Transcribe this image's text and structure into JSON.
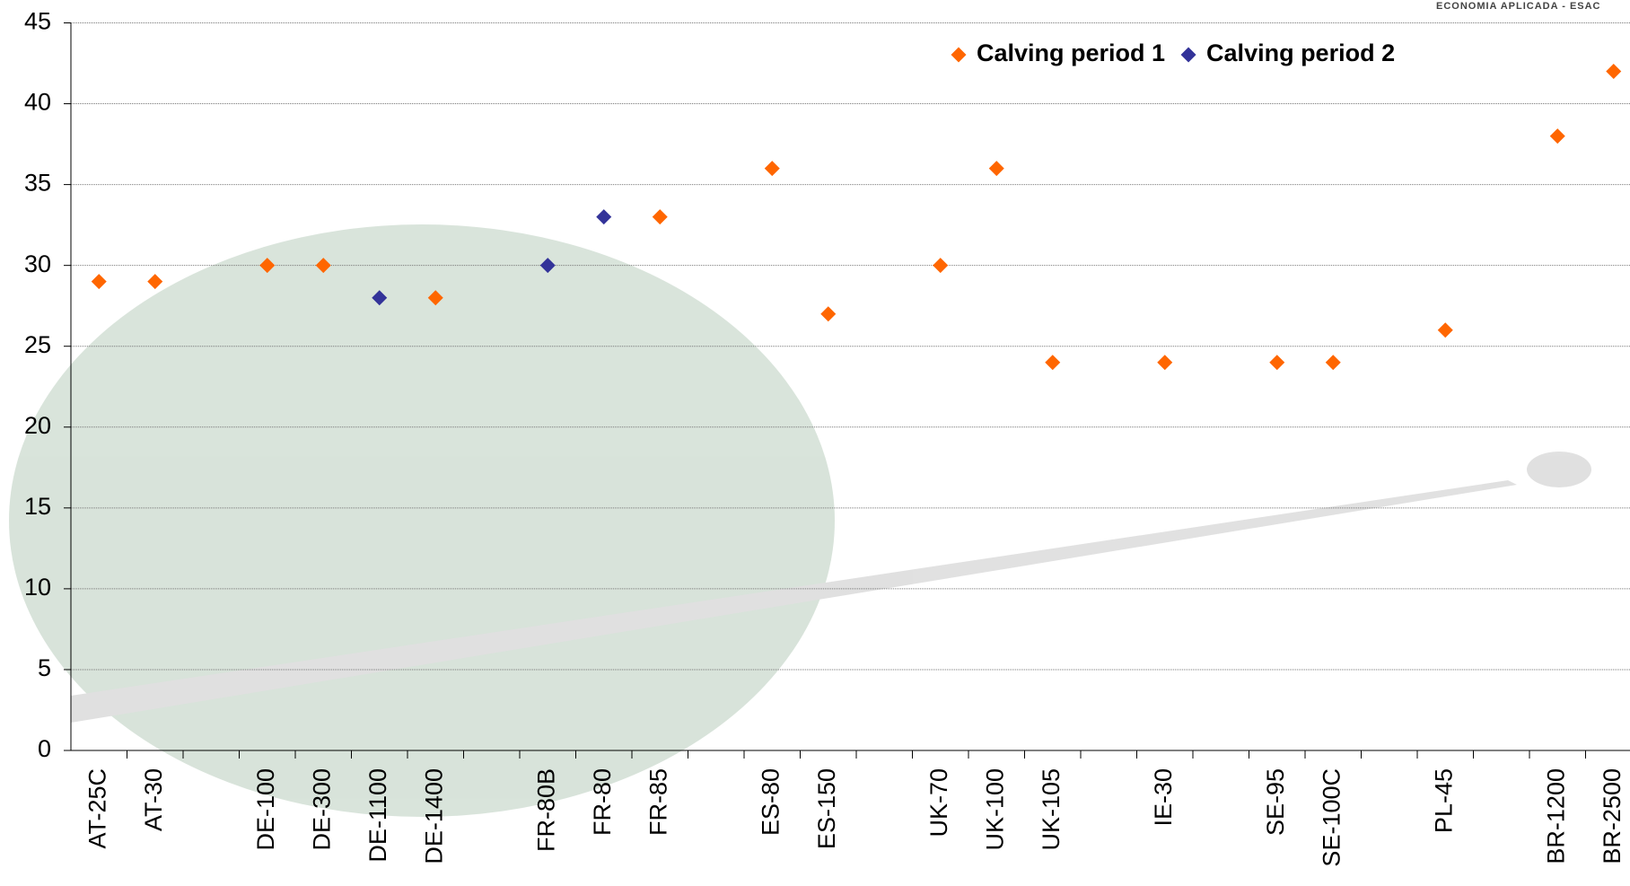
{
  "header": "ECONOMIA APLICADA - ESAC",
  "chart_data": {
    "type": "scatter",
    "categories": [
      "AT-25C",
      "AT-30",
      null,
      "DE-100",
      "DE-300",
      "DE-1100",
      "DE-1400",
      null,
      "FR-80B",
      "FR-80",
      "FR-85",
      null,
      "ES-80",
      "ES-150",
      null,
      "UK-70",
      "UK-100",
      "UK-105",
      null,
      "IE-30",
      null,
      "SE-95",
      "SE-100C",
      null,
      "PL-45",
      null,
      "BR-1200",
      "BR-2500"
    ],
    "series": [
      {
        "name": "Calving period 1",
        "color": "#ff6600",
        "values": [
          29,
          29,
          null,
          30,
          30,
          null,
          28,
          null,
          null,
          null,
          33,
          null,
          36,
          27,
          null,
          30,
          36,
          24,
          null,
          24,
          null,
          24,
          24,
          null,
          26,
          null,
          38,
          42
        ]
      },
      {
        "name": "Calving period 2",
        "color": "#333399",
        "values": [
          null,
          null,
          null,
          null,
          null,
          28,
          null,
          null,
          30,
          33,
          null,
          null,
          null,
          null,
          null,
          null,
          null,
          null,
          null,
          null,
          null,
          null,
          null,
          null,
          null,
          null,
          null,
          null
        ]
      }
    ],
    "ylim": [
      0,
      45
    ],
    "yticks": [
      0,
      5,
      10,
      15,
      20,
      25,
      30,
      35,
      40,
      45
    ],
    "grid": true,
    "legend": "top"
  }
}
